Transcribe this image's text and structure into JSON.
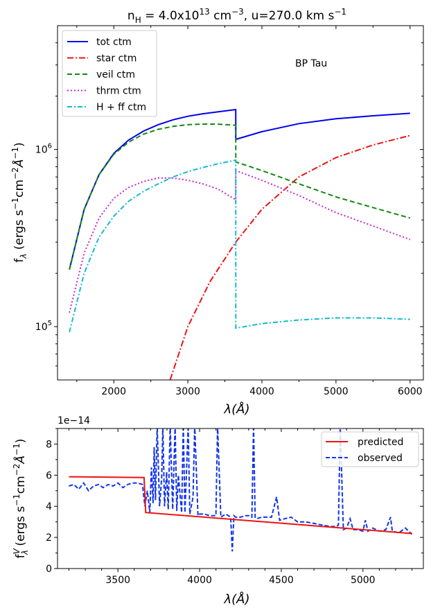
{
  "chart_data": [
    {
      "type": "line",
      "title_parts": {
        "n": "n",
        "sub": "H",
        "eq": " = 4.0x10",
        "exp": "13",
        "unit1": " cm",
        "unit1_exp": "−3",
        "mid": ", u=270.0 km s",
        "unit2_exp": "−1"
      },
      "xlabel": "λ(Å)",
      "ylabel": "f_λ (ergs s^-1 cm^-2 Å^-1)",
      "ylabel_parts": {
        "f": "f",
        "sub": "λ",
        "a": " (ergs s",
        "e1": "−1",
        "b": "cm",
        "e2": "−2",
        "c": "Å",
        "e3": "−1",
        "d": ")"
      },
      "annotation": "BP Tau",
      "x_ticks": [
        "2000",
        "3000",
        "4000",
        "5000",
        "6000"
      ],
      "y_ticks": [
        "10^5",
        "10^6"
      ],
      "y_tick_parts": [
        {
          "base": "10",
          "exp": "5"
        },
        {
          "base": "10",
          "exp": "6"
        }
      ],
      "xlim": [
        1240,
        6180
      ],
      "ylim": [
        50000,
        5000000
      ],
      "yscale": "log",
      "legend_position": "top-left",
      "series": [
        {
          "name": "tot ctm",
          "color": "#0000ee",
          "dash": "",
          "x": [
            1400,
            1600,
            1800,
            2000,
            2200,
            2400,
            2600,
            2800,
            3000,
            3200,
            3400,
            3646,
            3647,
            4000,
            4500,
            5000,
            5500,
            6000
          ],
          "values": [
            210000,
            460000,
            720000,
            950000,
            1130000,
            1270000,
            1380000,
            1470000,
            1540000,
            1590000,
            1630000,
            1680000,
            1140000,
            1260000,
            1400000,
            1490000,
            1550000,
            1600000
          ]
        },
        {
          "name": "star ctm",
          "color": "#ee1111",
          "dash": "9,3,2,3",
          "x": [
            2760,
            3000,
            3300,
            3646,
            4000,
            4500,
            5000,
            5500,
            6000
          ],
          "values": [
            50000,
            100000,
            180000,
            300000,
            460000,
            700000,
            900000,
            1060000,
            1200000
          ]
        },
        {
          "name": "veil ctm",
          "color": "#118811",
          "dash": "7,4",
          "x": [
            1400,
            1600,
            1800,
            2000,
            2200,
            2400,
            2600,
            2800,
            3000,
            3200,
            3400,
            3646,
            3647,
            4000,
            4500,
            5000,
            5500,
            6000
          ],
          "values": [
            210000,
            460000,
            720000,
            940000,
            1100000,
            1220000,
            1300000,
            1350000,
            1380000,
            1390000,
            1390000,
            1370000,
            850000,
            760000,
            640000,
            540000,
            470000,
            410000
          ]
        },
        {
          "name": "thrm ctm",
          "color": "#cc22cc",
          "dash": "2,3",
          "x": [
            1400,
            1600,
            1800,
            2000,
            2200,
            2400,
            2600,
            2800,
            3000,
            3200,
            3400,
            3646,
            3647,
            4000,
            4500,
            5000,
            5500,
            6000
          ],
          "values": [
            120000,
            260000,
            410000,
            530000,
            610000,
            660000,
            690000,
            690000,
            670000,
            640000,
            600000,
            520000,
            760000,
            670000,
            550000,
            440000,
            370000,
            310000
          ]
        },
        {
          "name": "H + ff ctm",
          "color": "#11bbcc",
          "dash": "7,3,2,3",
          "x": [
            1400,
            1600,
            1800,
            2000,
            2200,
            2400,
            2600,
            2800,
            3000,
            3200,
            3400,
            3646,
            3647,
            4000,
            4500,
            5000,
            5500,
            6000
          ],
          "values": [
            93000,
            200000,
            320000,
            420000,
            510000,
            580000,
            640000,
            700000,
            750000,
            790000,
            830000,
            870000,
            98000,
            104000,
            109000,
            112000,
            112000,
            110000
          ]
        }
      ]
    },
    {
      "type": "line",
      "xlabel": "λ(Å)",
      "ylabel": "f_λ^V (ergs s^-1 cm^-2 Å^-1)",
      "ylabel_parts": {
        "f": "f",
        "sub": "λ",
        "sup": "V",
        "a": " (ergs s",
        "e1": "−1",
        "b": "cm",
        "e2": "−2",
        "c": "Å",
        "e3": "−1",
        "d": ")"
      },
      "offset_text": "1e−14",
      "x_ticks": [
        "3500",
        "4000",
        "4500",
        "5000"
      ],
      "y_ticks": [
        "0",
        "2",
        "4",
        "6",
        "8"
      ],
      "xlim": [
        3130,
        5370
      ],
      "ylim": [
        0,
        9
      ],
      "legend_position": "top-right",
      "series": [
        {
          "name": "predicted",
          "color": "#ee1111",
          "dash": "",
          "x": [
            3200,
            3660,
            3670,
            5300
          ],
          "values": [
            5.9,
            5.85,
            3.6,
            2.25
          ]
        },
        {
          "name": "observed",
          "color": "#1133ee",
          "dash": "6,3",
          "x": [
            3200,
            3230,
            3260,
            3290,
            3320,
            3350,
            3380,
            3410,
            3440,
            3470,
            3500,
            3530,
            3560,
            3590,
            3620,
            3650,
            3665,
            3680,
            3695,
            3705,
            3715,
            3722,
            3730,
            3740,
            3755,
            3768,
            3775,
            3785,
            3798,
            3808,
            3820,
            3835,
            3850,
            3860,
            3870,
            3890,
            3900,
            3910,
            3930,
            3940,
            3960,
            3970,
            3990,
            4000,
            4030,
            4060,
            4100,
            4110,
            4130,
            4160,
            4190,
            4200,
            4210,
            4220,
            4250,
            4280,
            4300,
            4320,
            4330,
            4340,
            4350,
            4380,
            4410,
            4440,
            4471,
            4490,
            4520,
            4560,
            4600,
            4650,
            4700,
            4750,
            4800,
            4840,
            4850,
            4861,
            4880,
            4900,
            4921,
            4940,
            4970,
            5000,
            5015,
            5030,
            5060,
            5100,
            5140,
            5169,
            5180,
            5220,
            5260,
            5300
          ],
          "values": [
            5.3,
            5.4,
            5.1,
            5.5,
            5.0,
            5.3,
            5.4,
            5.2,
            5.4,
            5.3,
            5.5,
            5.2,
            5.4,
            5.5,
            5.5,
            5.4,
            4.0,
            5.0,
            3.6,
            6.5,
            4.2,
            7.8,
            4.4,
            9.2,
            4.0,
            5.9,
            9.2,
            4.0,
            6.2,
            3.8,
            9.2,
            3.8,
            9.2,
            3.7,
            6.0,
            3.6,
            9.2,
            3.6,
            9.2,
            3.5,
            4.6,
            9.2,
            3.4,
            3.5,
            3.5,
            3.4,
            3.4,
            9.2,
            3.3,
            3.5,
            3.3,
            1.1,
            3.4,
            3.3,
            3.3,
            3.4,
            3.4,
            3.3,
            9.2,
            3.3,
            3.2,
            3.3,
            3.3,
            3.3,
            4.6,
            3.1,
            3.2,
            3.3,
            3.0,
            3.0,
            2.9,
            2.8,
            2.7,
            2.7,
            2.8,
            9.2,
            2.5,
            2.6,
            3.2,
            2.5,
            2.5,
            2.4,
            3.1,
            2.4,
            2.6,
            2.4,
            2.5,
            3.3,
            2.4,
            2.3,
            2.6,
            2.2
          ]
        }
      ]
    }
  ]
}
